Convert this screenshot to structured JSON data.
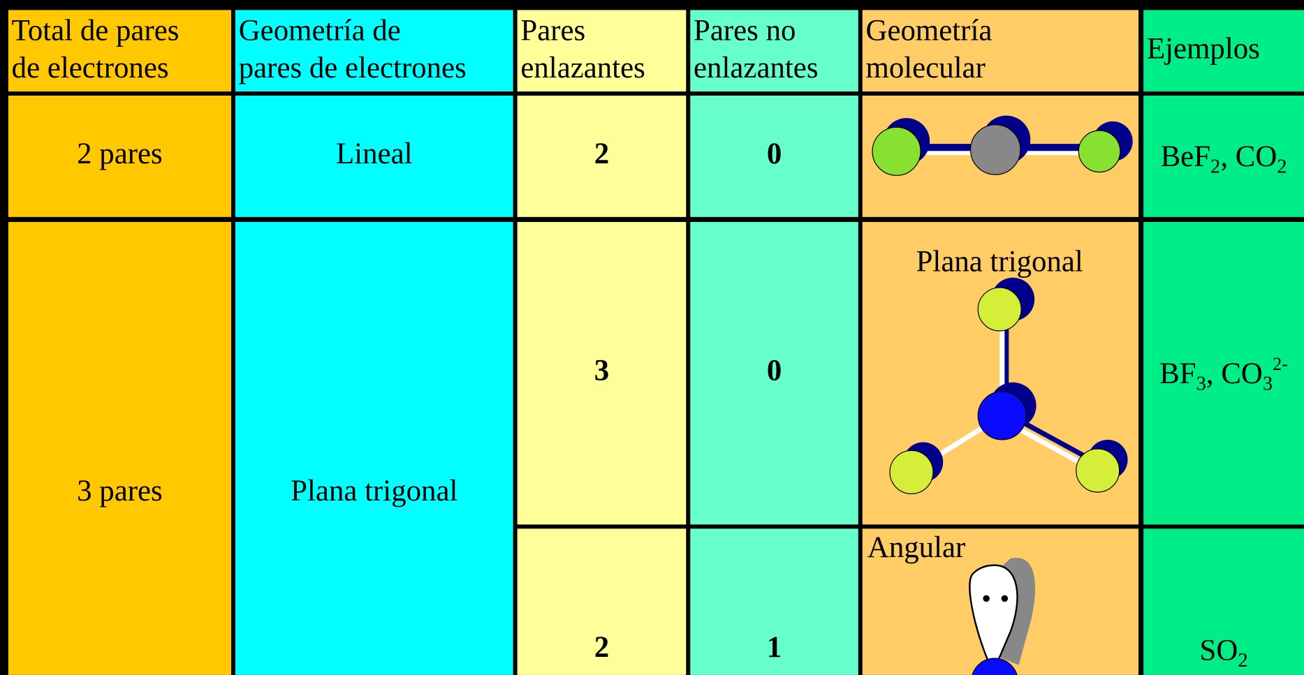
{
  "table": {
    "headers": [
      [
        "Total de pares",
        "de electrones"
      ],
      [
        "Geometría de",
        "pares de electrones"
      ],
      [
        "Pares",
        "enlazantes"
      ],
      [
        "Pares no",
        "enlazantes"
      ],
      [
        "Geometría",
        "molecular"
      ],
      [
        "Ejemplos"
      ]
    ],
    "rows": [
      {
        "total": "2 pares",
        "geometry": "Lineal",
        "bonding": 2,
        "lone": 0,
        "examples": [
          {
            "text": "BeF"
          },
          {
            "sub": "2"
          },
          {
            "text": ", CO"
          },
          {
            "sub": "2"
          }
        ]
      },
      {
        "total": "3 pares",
        "geometry": "Plana trigonal",
        "bonding": 3,
        "lone": 0,
        "molecular": "Plana trigonal",
        "examples": [
          {
            "text": "BF"
          },
          {
            "sub": "3"
          },
          {
            "text": ", CO"
          },
          {
            "sub": "3"
          },
          {
            "sup": "2-"
          }
        ]
      },
      {
        "bonding": 2,
        "lone": 1,
        "molecular": "Angular",
        "examples": [
          {
            "text": "SO"
          },
          {
            "sub": "2"
          }
        ]
      }
    ]
  }
}
